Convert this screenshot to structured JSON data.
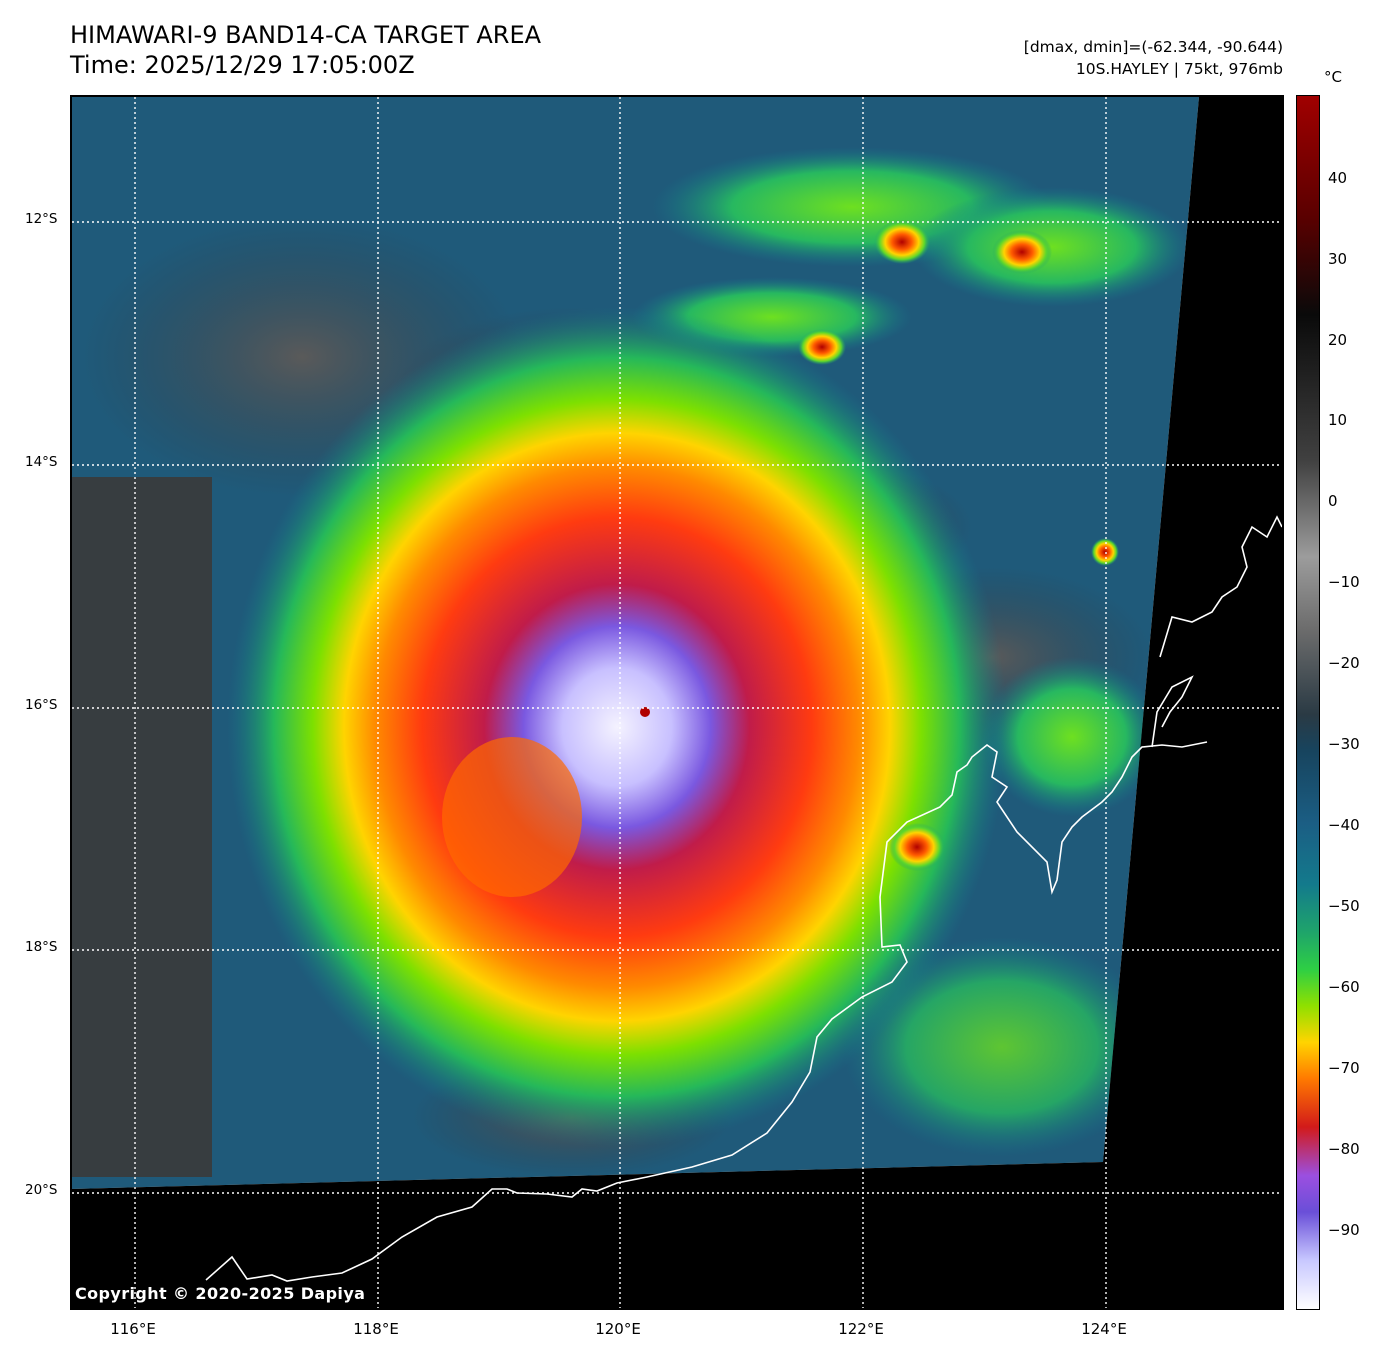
{
  "header": {
    "title_line1": "HIMAWARI-9 BAND14-CA TARGET AREA",
    "title_line2": "Time: 2025/12/29 17:05:00Z",
    "info_line1": "[dmax, dmin]=(-62.344, -90.644)",
    "info_line2": "10S.HAYLEY | 75kt, 976mb"
  },
  "map": {
    "copyright": "Copyright © 2020-2025 Dapiya",
    "lat_labels": [
      "12°S",
      "14°S",
      "16°S",
      "18°S",
      "20°S"
    ],
    "lon_labels": [
      "116°E",
      "118°E",
      "120°E",
      "122°E",
      "124°E"
    ],
    "storm_name": "10S.HAYLEY",
    "storm_center": {
      "lon": 120.2,
      "lat": -16.0
    }
  },
  "colorbar": {
    "unit": "°C",
    "ticks": [
      "40",
      "30",
      "20",
      "10",
      "0",
      "−10",
      "−20",
      "−30",
      "−40",
      "−50",
      "−60",
      "−70",
      "−80",
      "−90"
    ],
    "colors": {
      "coldest": "#ffffff",
      "violet": "#6a4fd8",
      "red": "#d21a1a",
      "orange": "#ff7a00",
      "yellow": "#ffd400",
      "green": "#2ecf44",
      "teal": "#137a8c",
      "blue": "#1b5e84",
      "gray": "#6c6c6c",
      "black": "#0a0a0a",
      "warmest": "#a00000"
    }
  }
}
